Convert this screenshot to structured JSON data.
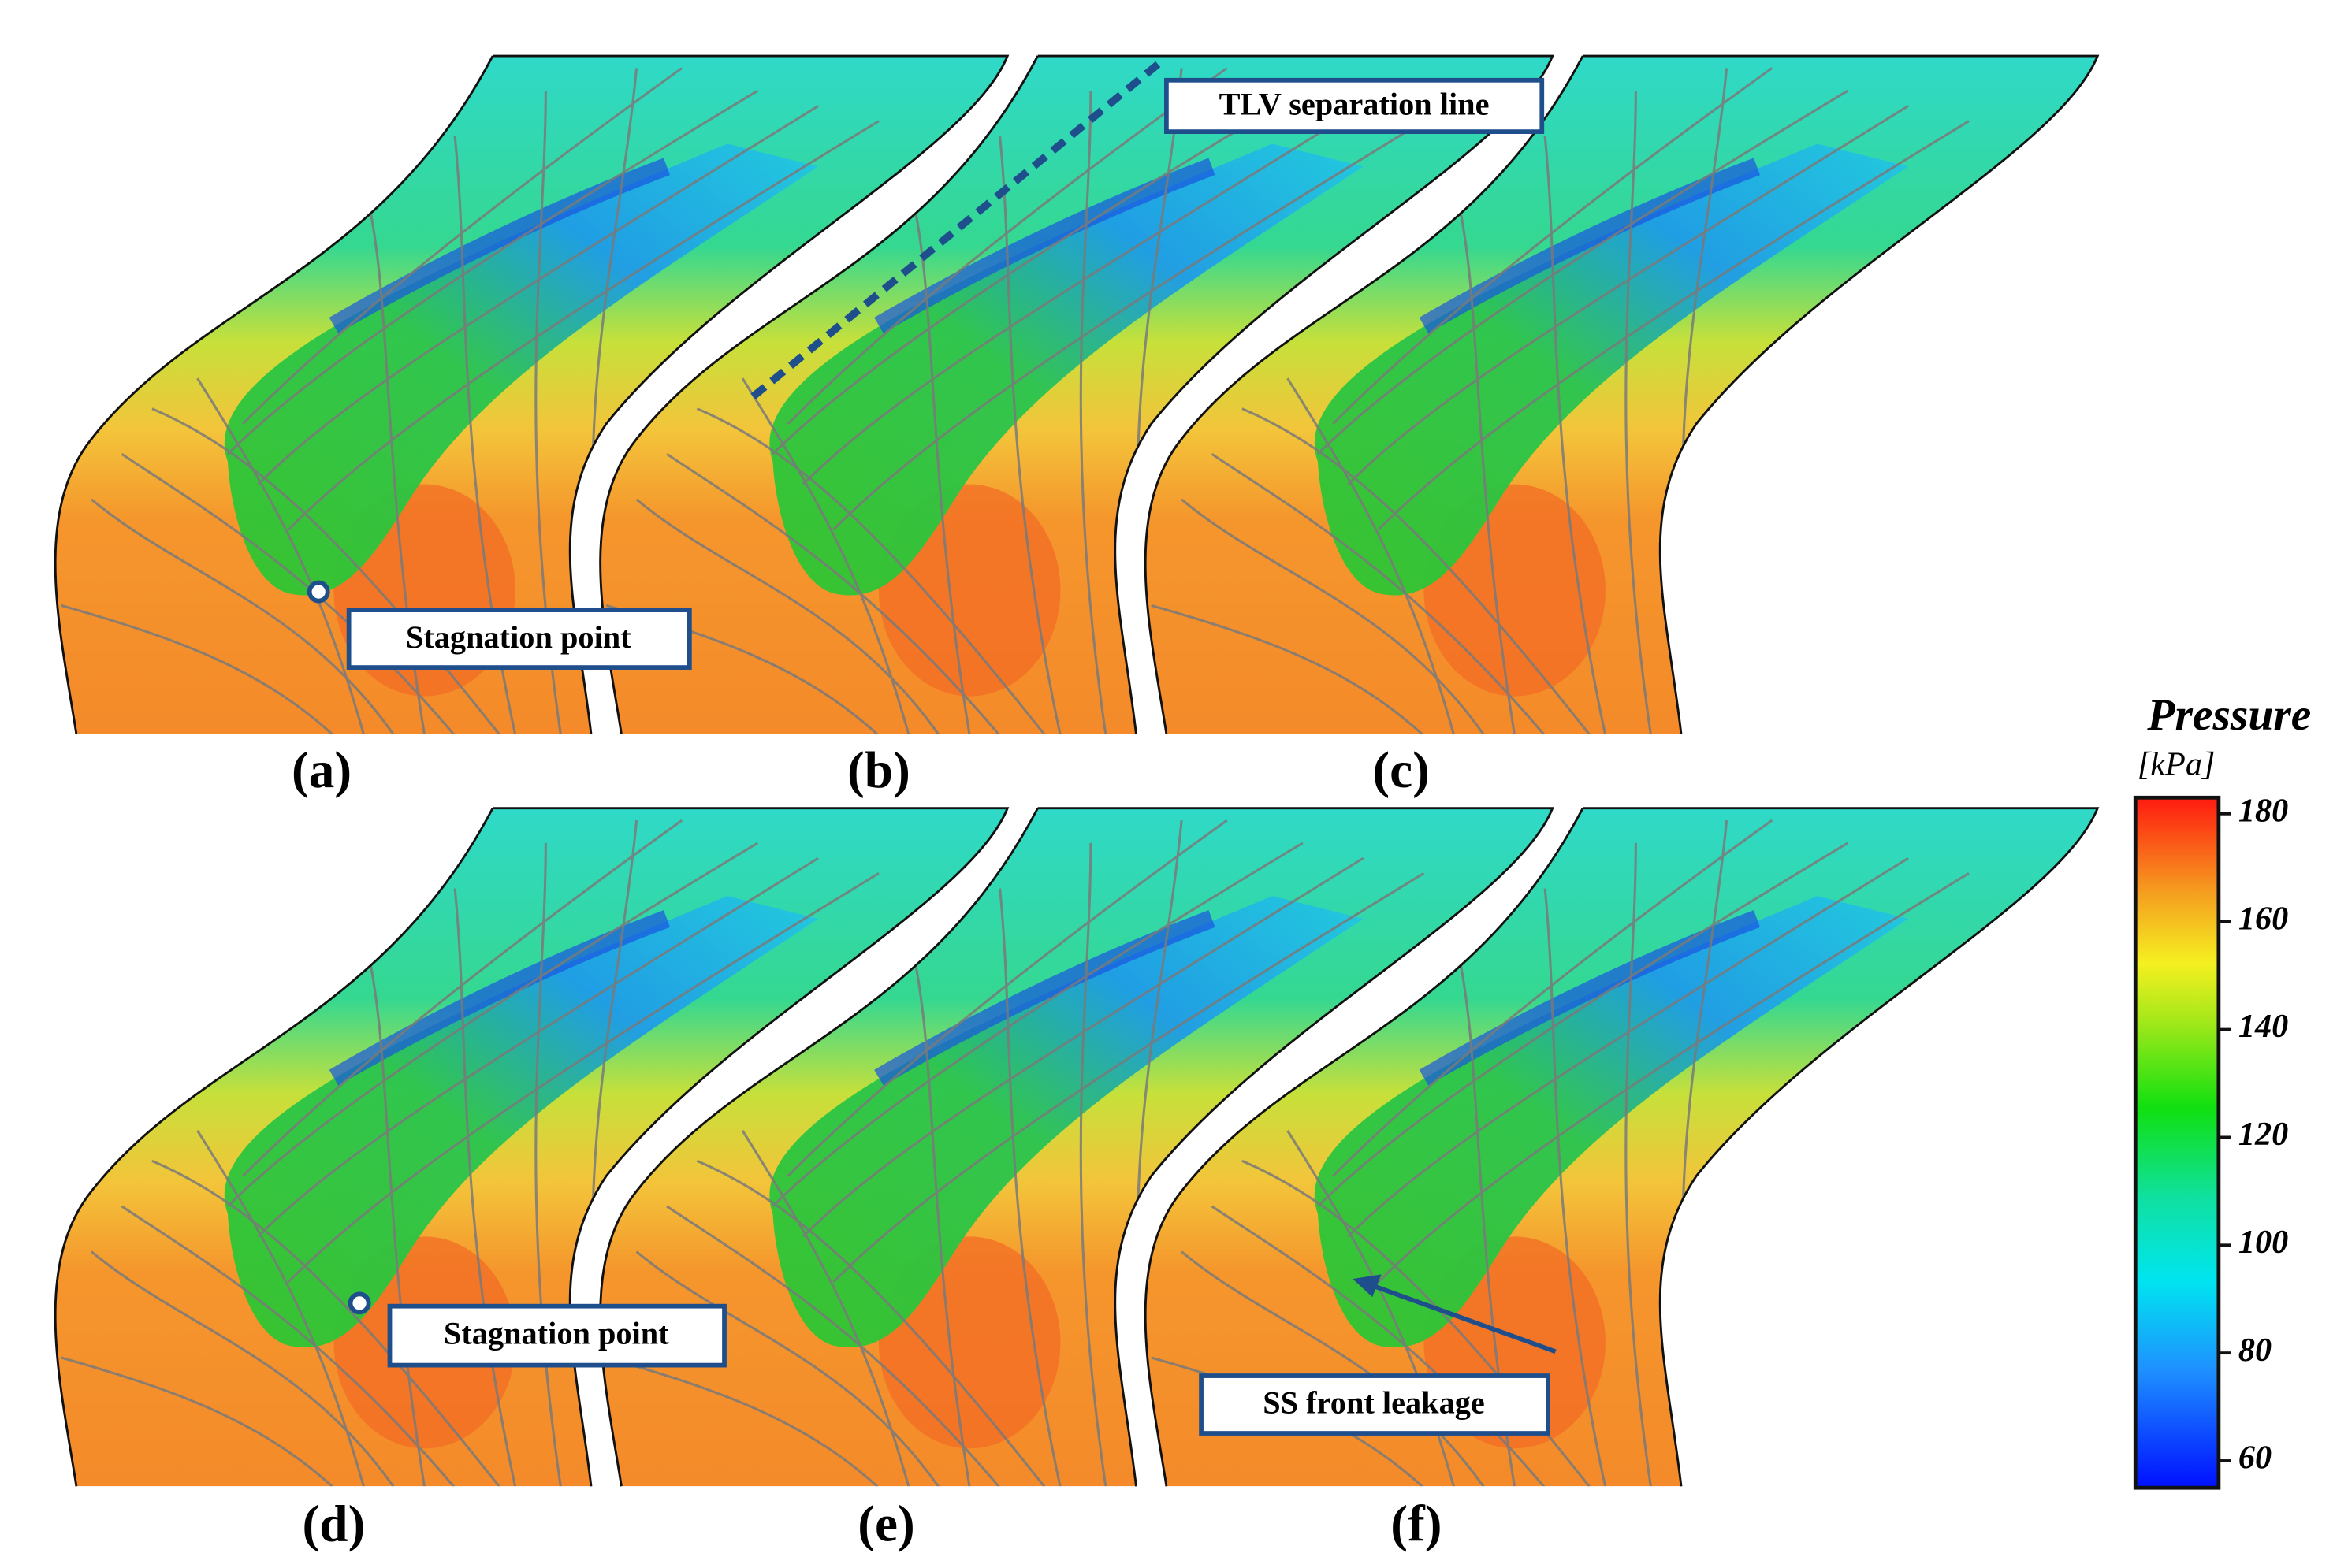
{
  "panels": [
    {
      "label": "(a)"
    },
    {
      "label": "(b)"
    },
    {
      "label": "(c)"
    },
    {
      "label": "(d)"
    },
    {
      "label": "(e)"
    },
    {
      "label": "(f)"
    }
  ],
  "annotations": [
    {
      "text": "Stagnation point"
    },
    {
      "text": "TLV separation line"
    },
    {
      "text": "Stagnation point"
    },
    {
      "text": "SS front leakage"
    }
  ],
  "colorbar": {
    "title": "Pressure",
    "unit": "[kPa]",
    "lim": [
      55,
      183
    ],
    "ticks": [
      60,
      80,
      100,
      120,
      140,
      160,
      180
    ]
  }
}
